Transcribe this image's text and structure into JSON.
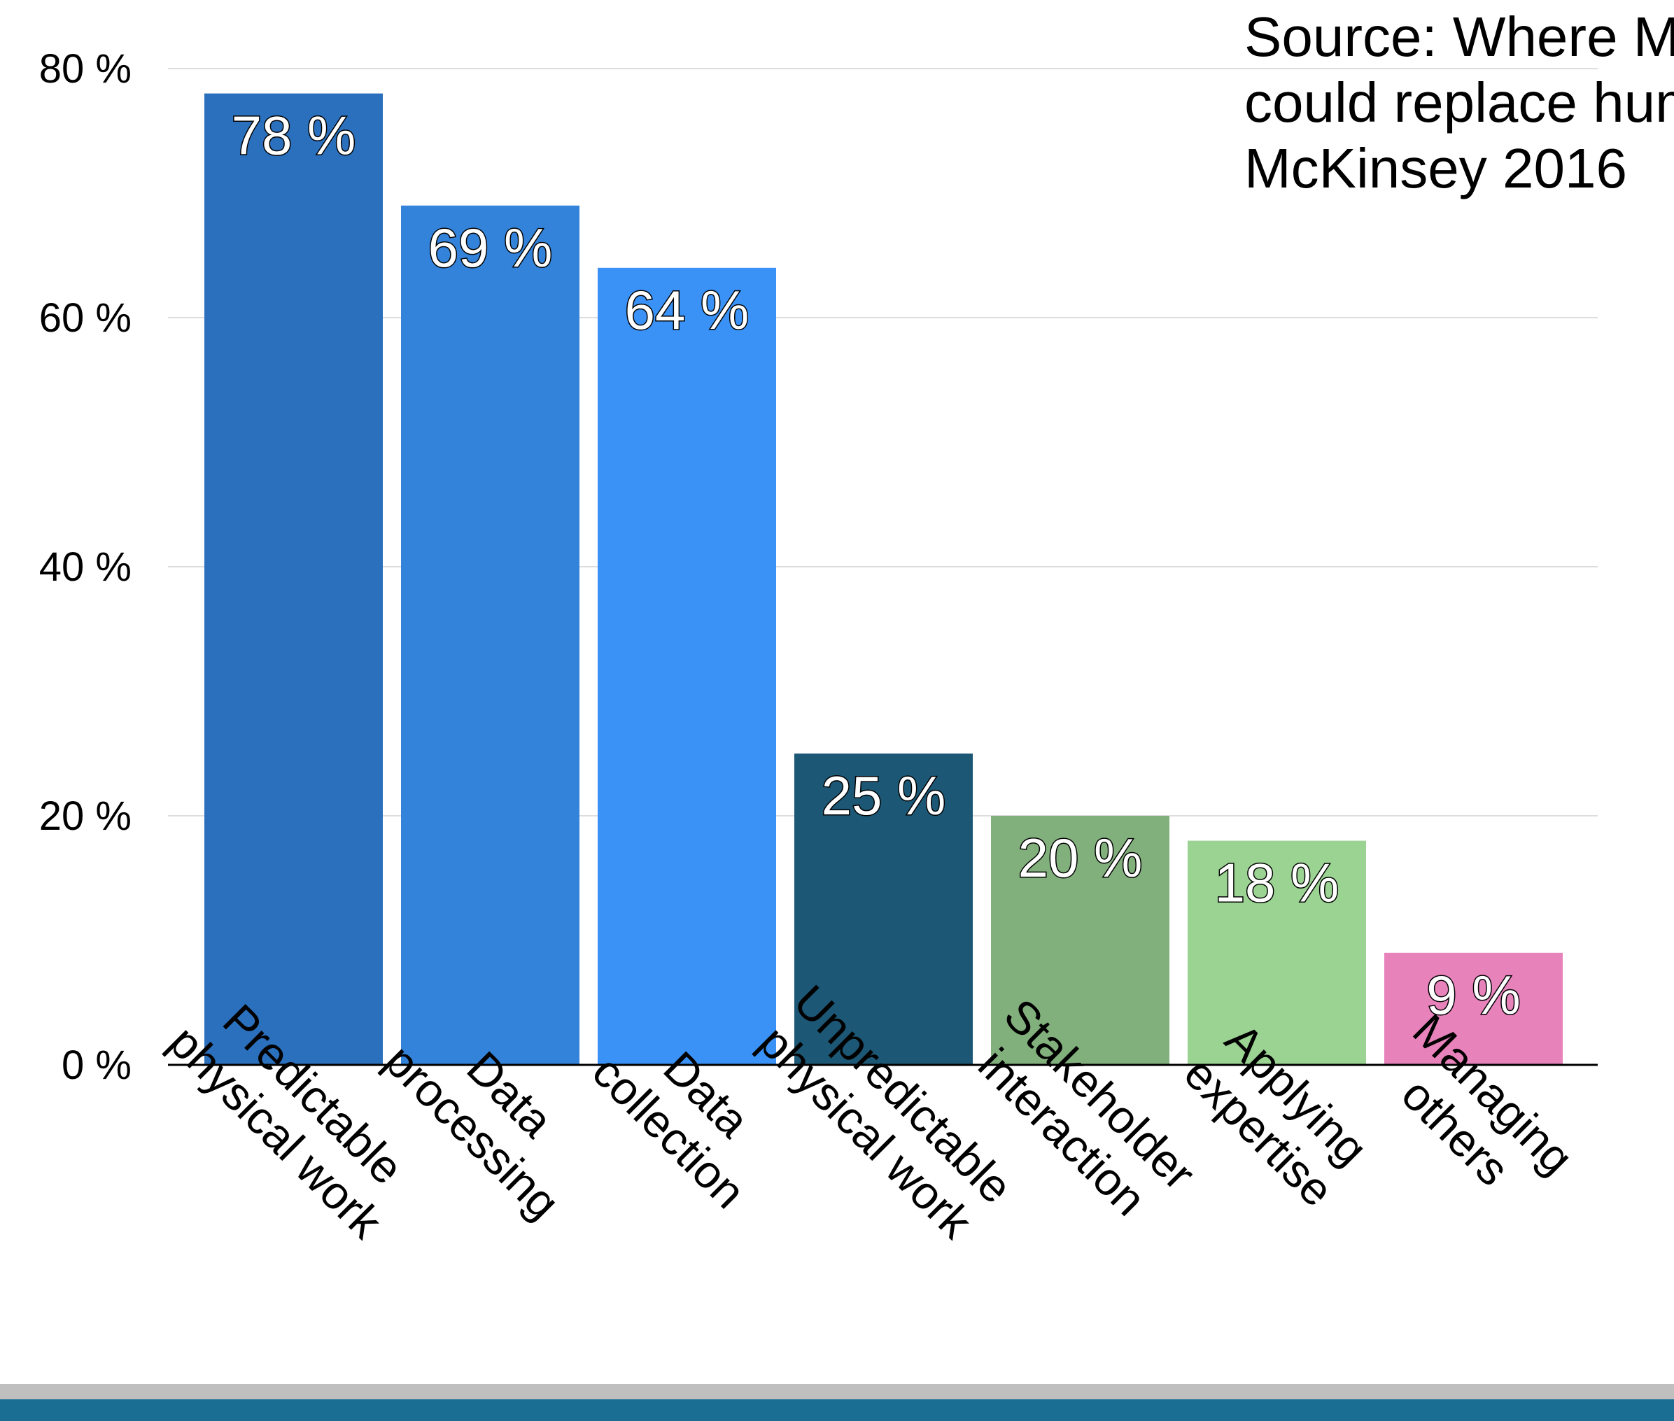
{
  "chart_data": {
    "type": "bar",
    "categories": [
      "Predictable physical work",
      "Data processing",
      "Data collection",
      "Unpredictable physical work",
      "Stakeholder interaction",
      "Applying expertise",
      "Managing others"
    ],
    "category_lines": [
      [
        "Predictable",
        "physical work"
      ],
      [
        "Data",
        "processing"
      ],
      [
        "Data",
        "collection"
      ],
      [
        "Unpredictable",
        "physical work"
      ],
      [
        "Stakeholder",
        "interaction"
      ],
      [
        "Applying",
        "expertise"
      ],
      [
        "Managing",
        "others"
      ]
    ],
    "values": [
      78,
      69,
      64,
      25,
      20,
      18,
      9
    ],
    "data_labels": [
      "78 %",
      "69 %",
      "64 %",
      "25 %",
      "20 %",
      "18 %",
      "9 %"
    ],
    "colors": [
      "#2b70bd",
      "#3383da",
      "#3a92f6",
      "#1c5775",
      "#82b07d",
      "#9bd392",
      "#e782bb"
    ],
    "ylim": [
      0,
      80
    ],
    "yticks": [
      0,
      20,
      40,
      60,
      80
    ],
    "ytick_labels": [
      "0 %",
      "20 %",
      "40 %",
      "60 %",
      "80 %"
    ],
    "grid": true,
    "gridline_color": "#dddddd",
    "source_note": [
      "Source: Where Machines",
      "could replace humans,",
      "McKinsey 2016"
    ]
  },
  "footer_bar_colors": [
    "#bfbfbf",
    "#1a6e94"
  ]
}
